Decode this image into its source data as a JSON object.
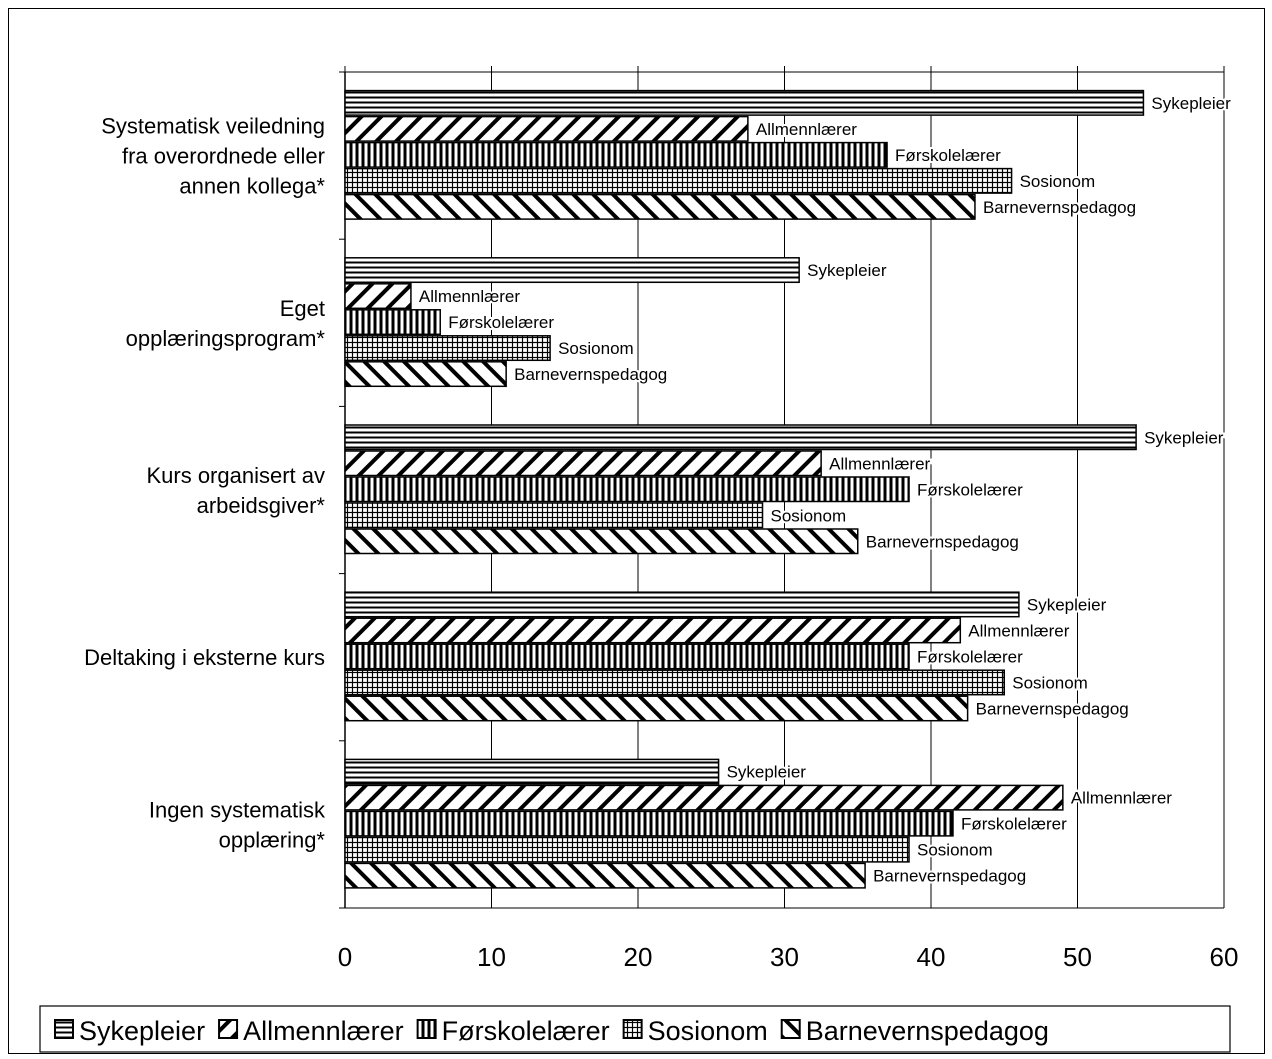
{
  "chart_data": {
    "type": "bar",
    "orientation": "horizontal",
    "categories": [
      [
        "Systematisk veiledning",
        "fra overordnede eller",
        "annen kollega*"
      ],
      [
        "Eget",
        "opplæringsprogram*"
      ],
      [
        "Kurs organisert av",
        "arbeidsgiver*"
      ],
      [
        "Deltaking i eksterne kurs"
      ],
      [
        "Ingen systematisk",
        "opplæring*"
      ]
    ],
    "series": [
      {
        "name": "Sykepleier",
        "pattern": "horizontal",
        "values": [
          54.5,
          31,
          54,
          46,
          25.5
        ]
      },
      {
        "name": "Allmennlærer",
        "pattern": "back-diagonal",
        "values": [
          27.5,
          4.5,
          32.5,
          42,
          49
        ]
      },
      {
        "name": "Førskolelærer",
        "pattern": "vertical",
        "values": [
          37,
          6.5,
          38.5,
          38.5,
          41.5
        ]
      },
      {
        "name": "Sosionom",
        "pattern": "grid",
        "values": [
          45.5,
          14,
          28.5,
          45,
          38.5
        ]
      },
      {
        "name": "Barnevernspedagog",
        "pattern": "forward-diagonal",
        "values": [
          43,
          11,
          35,
          42.5,
          35.5
        ]
      }
    ],
    "xlim": [
      0,
      60
    ],
    "xticks": [
      0,
      10,
      20,
      30,
      40,
      50,
      60
    ],
    "grid": true,
    "legend": "bottom",
    "colors": {
      "fill": "#ffffff",
      "ink": "#000000"
    }
  }
}
